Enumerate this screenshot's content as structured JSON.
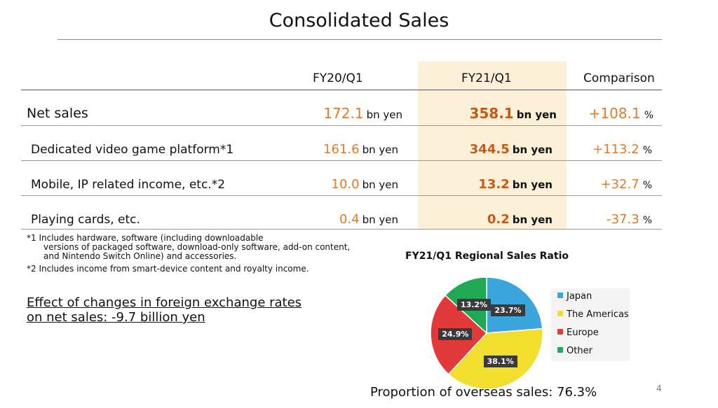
{
  "slide": {
    "title": "Consolidated Sales",
    "page_number": "4"
  },
  "table": {
    "headers": {
      "prev": "FY20/Q1",
      "curr": "FY21/Q1",
      "comparison": "Comparison"
    },
    "unit": "bn yen",
    "pct_symbol": "%",
    "rows": [
      {
        "label": "Net sales",
        "prev": "172.1",
        "curr": "358.1",
        "comparison": "+108.1"
      },
      {
        "label": "Dedicated video game platform*1",
        "prev": "161.6",
        "curr": "344.5",
        "comparison": "+113.2"
      },
      {
        "label": "Mobile, IP related income, etc.*2",
        "prev": "10.0",
        "curr": "13.2",
        "comparison": "+32.7"
      },
      {
        "label": "Playing cards, etc.",
        "prev": "0.4",
        "curr": "0.2",
        "comparison": "-37.3"
      }
    ]
  },
  "footnotes": {
    "n1_line1": "*1 Includes hardware, software (including downloadable",
    "n1_line2": "versions of packaged software, download-only software, add-on content,",
    "n1_line3": "and Nintendo Switch Online) and accessories.",
    "n2": "*2 Includes income from smart-device content and royalty income."
  },
  "fx_effect": {
    "line1": "Effect of changes in foreign exchange rates",
    "line2": "on net sales: -9.7 billion yen"
  },
  "chart_data": {
    "type": "pie",
    "title": "FY21/Q1 Regional Sales Ratio",
    "legend_position": "right",
    "slices": [
      {
        "name": "Japan",
        "value": 23.7,
        "label": "23.7%",
        "color": "#3aa6dc"
      },
      {
        "name": "The Americas",
        "value": 38.1,
        "label": "38.1%",
        "color": "#f2de2c"
      },
      {
        "name": "Europe",
        "value": 24.9,
        "label": "24.9%",
        "color": "#e23a3a"
      },
      {
        "name": "Other",
        "value": 13.2,
        "label": "13.2%",
        "color": "#1fa954"
      }
    ]
  },
  "overseas_text": "Proportion of overseas sales: 76.3%"
}
